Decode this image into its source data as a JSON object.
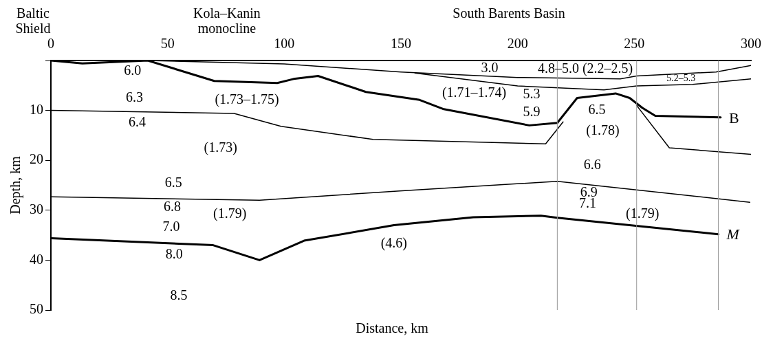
{
  "chart_data": {
    "type": "line",
    "xlabel": "Distance, km",
    "ylabel": "Depth, km",
    "xlim": [
      0,
      300
    ],
    "xticks": [
      0,
      50,
      100,
      150,
      200,
      250,
      300
    ],
    "ylim": [
      50,
      0
    ],
    "yticks": [
      {
        "value": 0,
        "label": null
      },
      10,
      20,
      30,
      40,
      50
    ],
    "grid": false,
    "legend": false,
    "marker": "none",
    "line_style": "solid",
    "series": [
      {
        "color": "#000000",
        "x": [
          41.5,
          100,
          150,
          200,
          244,
          251,
          285,
          300
        ],
        "values": [
          0,
          0.7,
          2.3,
          3.4,
          3.7,
          3.1,
          2.3,
          1.0
        ]
      },
      {
        "color": "#000000",
        "x": [
          156,
          200,
          237,
          251,
          275,
          300
        ],
        "values": [
          2.5,
          5.1,
          5.9,
          5.1,
          4.8,
          3.7
        ]
      },
      {
        "name": "B",
        "color": "#000000",
        "x": [
          0,
          13.5,
          41.5,
          70,
          97,
          104,
          114.5,
          135,
          158,
          168,
          205,
          217,
          225.5,
          242,
          248,
          253.5,
          259,
          287
        ],
        "values": [
          0,
          0.6,
          0,
          4.1,
          4.5,
          3.7,
          3.1,
          6.3,
          7.9,
          9.7,
          13.0,
          12.5,
          7.5,
          6.6,
          7.5,
          9.5,
          11.1,
          11.4
        ]
      },
      {
        "color": "#000000",
        "x": [
          0,
          78.5,
          98.6,
          138,
          212,
          219.5,
          null,
          251,
          265,
          300
        ],
        "values": [
          10,
          10.6,
          13.2,
          15.8,
          16.7,
          12.3,
          null,
          9.0,
          17.5,
          18.8
        ]
      },
      {
        "color": "#000000",
        "x": [
          0,
          89.4,
          150.6,
          217,
          299.5
        ],
        "values": [
          27.3,
          28.0,
          26.1,
          24.2,
          28.4
        ]
      },
      {
        "name": "M",
        "color": "#000000",
        "x": [
          0,
          69.5,
          89.4,
          108.5,
          147,
          181,
          210,
          217,
          286
        ],
        "values": [
          35.6,
          37.0,
          40.0,
          36.1,
          33.0,
          31.4,
          31.1,
          31.5,
          34.8
        ]
      }
    ],
    "ref_lines": [
      {
        "axis": "x",
        "value": 217,
        "color": "#999999"
      },
      {
        "axis": "x",
        "value": 251,
        "color": "#999999"
      },
      {
        "axis": "x",
        "value": 286,
        "color": "#999999"
      }
    ],
    "annotations": [
      "Baltic Shield",
      "Kola–Kanin monocline",
      "South Barents Basin",
      "6.0",
      "6.3",
      "6.4",
      "(1.73)",
      "(1.73–1.75)",
      "(1.71–1.74)",
      "5.3",
      "5.9",
      "3.0",
      "4.8–5.0 (2.2–2.5)",
      "5.2–5.3",
      "6.5",
      "(1.78)",
      "6.6",
      "6.9",
      "7.1",
      "(1.79)",
      "6.5",
      "6.8",
      "(1.79)",
      "7.0",
      "8.0",
      "8.5",
      "(4.6)"
    ]
  }
}
